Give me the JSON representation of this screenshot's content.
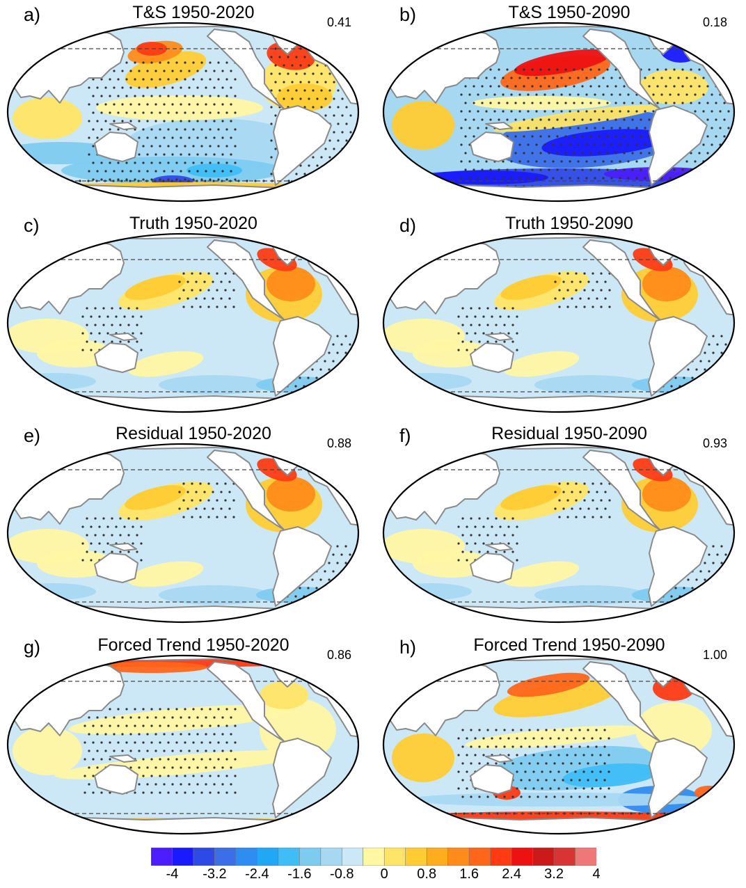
{
  "panels": [
    {
      "id": "a",
      "label": "a)",
      "title": "T&S 1950-2020",
      "corr": "0.41",
      "style": "ts20"
    },
    {
      "id": "b",
      "label": "b)",
      "title": "T&S 1950-2090",
      "corr": "0.18",
      "style": "ts90"
    },
    {
      "id": "c",
      "label": "c)",
      "title": "Truth 1950-2020",
      "corr": "",
      "style": "truth"
    },
    {
      "id": "d",
      "label": "d)",
      "title": "Truth 1950-2090",
      "corr": "",
      "style": "truth"
    },
    {
      "id": "e",
      "label": "e)",
      "title": "Residual 1950-2020",
      "corr": "0.88",
      "style": "truth"
    },
    {
      "id": "f",
      "label": "f)",
      "title": "Residual 1950-2090",
      "corr": "0.93",
      "style": "truth"
    },
    {
      "id": "g",
      "label": "g)",
      "title": "Forced Trend 1950-2020",
      "corr": "0.86",
      "style": "forced20"
    },
    {
      "id": "h",
      "label": "h)",
      "title": "Forced Trend 1950-2090",
      "corr": "1.00",
      "style": "forced90"
    }
  ],
  "colorbar": {
    "colors": [
      "#4b1dff",
      "#1a1aff",
      "#2e4ae6",
      "#3b6ee8",
      "#2f8cf0",
      "#21a8f5",
      "#3fbdf5",
      "#7ecbf0",
      "#a6d8f2",
      "#cce8f7",
      "#fff7a3",
      "#ffe566",
      "#ffcc33",
      "#ffad1f",
      "#ff8c1a",
      "#ff6619",
      "#ff3b14",
      "#ee1111",
      "#cc1a1a",
      "#d93333",
      "#ee7777"
    ],
    "tick_labels": [
      "-4",
      "-3.2",
      "-2.4",
      "-1.6",
      "-0.8",
      "0",
      "0.8",
      "1.6",
      "2.4",
      "3.2",
      "4"
    ]
  },
  "palette": {
    "land": "#ffffff",
    "coast": "#8a8a8a",
    "border": "#000000",
    "ocean_base": "#cce8f7",
    "stipple": "#333333"
  }
}
